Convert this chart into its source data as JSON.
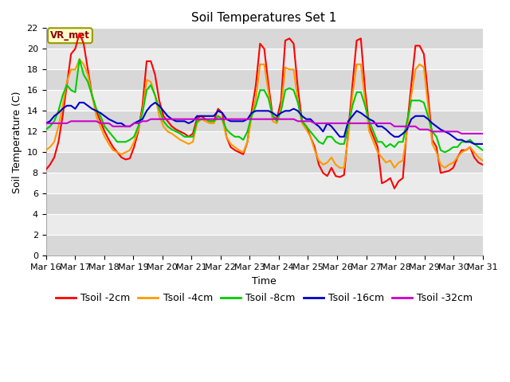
{
  "title": "Soil Temperatures Set 1",
  "xlabel": "Time",
  "ylabel": "Soil Temperature (C)",
  "annotation": "VR_met",
  "ylim": [
    0,
    22
  ],
  "yticks": [
    0,
    2,
    4,
    6,
    8,
    10,
    12,
    14,
    16,
    18,
    20,
    22
  ],
  "xtick_labels": [
    "Mar 16",
    "Mar 17",
    "Mar 18",
    "Mar 19",
    "Mar 20",
    "Mar 21",
    "Mar 22",
    "Mar 23",
    "Mar 24",
    "Mar 25",
    "Mar 26",
    "Mar 27",
    "Mar 28",
    "Mar 29",
    "Mar 30",
    "Mar 31"
  ],
  "colors": {
    "Tsoil -2cm": "#ff0000",
    "Tsoil -4cm": "#ff9900",
    "Tsoil -8cm": "#00cc00",
    "Tsoil -16cm": "#0000cc",
    "Tsoil -32cm": "#cc00cc"
  },
  "stripe_light": "#ebebeb",
  "stripe_dark": "#d8d8d8",
  "title_fontsize": 11,
  "axis_fontsize": 9,
  "tick_fontsize": 8,
  "legend_fontsize": 9,
  "series": {
    "Tsoil -2cm": [
      8.3,
      8.8,
      9.5,
      11.0,
      13.5,
      16.5,
      19.5,
      20.0,
      21.5,
      20.5,
      18.0,
      15.5,
      14.0,
      13.0,
      12.0,
      11.2,
      10.5,
      10.0,
      9.5,
      9.3,
      9.4,
      10.5,
      12.0,
      14.5,
      18.8,
      18.8,
      17.5,
      15.0,
      13.5,
      13.0,
      12.5,
      12.2,
      12.0,
      11.8,
      11.5,
      11.8,
      13.3,
      13.5,
      13.2,
      13.0,
      13.0,
      14.2,
      13.8,
      11.5,
      10.5,
      10.2,
      10.0,
      9.8,
      11.0,
      14.0,
      16.5,
      20.5,
      20.0,
      16.5,
      13.5,
      13.2,
      15.0,
      20.8,
      21.0,
      20.5,
      16.2,
      13.0,
      12.5,
      11.5,
      10.5,
      8.8,
      8.0,
      7.7,
      8.5,
      7.7,
      7.6,
      7.8,
      12.0,
      16.5,
      20.8,
      21.0,
      16.0,
      12.5,
      11.5,
      10.5,
      7.0,
      7.2,
      7.5,
      6.5,
      7.2,
      7.5,
      12.5,
      16.5,
      20.3,
      20.3,
      19.5,
      15.5,
      11.2,
      10.5,
      8.0,
      8.1,
      8.2,
      8.5,
      9.5,
      10.2,
      10.2,
      10.5,
      9.5,
      9.0,
      8.8
    ],
    "Tsoil -4cm": [
      10.2,
      10.5,
      11.0,
      12.5,
      14.5,
      16.8,
      18.0,
      18.0,
      19.0,
      18.5,
      17.5,
      15.5,
      13.5,
      12.5,
      11.5,
      10.8,
      10.2,
      10.0,
      9.8,
      10.0,
      10.2,
      11.0,
      12.2,
      14.0,
      17.0,
      16.8,
      15.5,
      13.5,
      12.5,
      12.0,
      11.8,
      11.5,
      11.2,
      11.0,
      10.8,
      11.0,
      12.8,
      13.2,
      13.0,
      12.8,
      12.8,
      13.5,
      13.2,
      11.5,
      10.8,
      10.5,
      10.2,
      10.0,
      11.0,
      13.5,
      15.2,
      18.5,
      18.5,
      15.8,
      13.0,
      12.8,
      14.2,
      18.2,
      18.0,
      18.0,
      15.0,
      12.8,
      12.2,
      11.5,
      10.2,
      9.2,
      8.8,
      9.0,
      9.5,
      8.8,
      8.5,
      8.5,
      11.5,
      15.5,
      18.5,
      18.5,
      15.0,
      12.0,
      11.0,
      10.0,
      9.5,
      9.0,
      9.2,
      8.5,
      9.0,
      9.2,
      12.0,
      15.5,
      18.0,
      18.5,
      18.2,
      14.5,
      10.8,
      10.0,
      8.8,
      8.5,
      8.8,
      9.0,
      9.5,
      10.0,
      10.2,
      10.5,
      10.0,
      9.5,
      9.2
    ],
    "Tsoil -8cm": [
      12.2,
      12.5,
      13.0,
      14.0,
      15.5,
      16.5,
      16.0,
      15.8,
      19.0,
      17.5,
      16.8,
      15.5,
      14.2,
      13.5,
      12.5,
      12.0,
      11.5,
      11.0,
      11.0,
      11.0,
      11.2,
      11.5,
      12.5,
      13.8,
      16.0,
      16.5,
      15.5,
      14.2,
      13.0,
      12.5,
      12.2,
      12.0,
      11.8,
      11.5,
      11.5,
      11.5,
      13.0,
      13.2,
      13.2,
      13.0,
      13.0,
      13.5,
      13.2,
      12.2,
      11.8,
      11.5,
      11.5,
      11.2,
      12.0,
      13.5,
      14.5,
      16.0,
      16.0,
      15.2,
      13.5,
      13.0,
      14.0,
      16.0,
      16.2,
      16.0,
      14.8,
      13.0,
      12.5,
      12.0,
      11.5,
      11.0,
      10.8,
      11.5,
      11.5,
      11.0,
      10.8,
      10.8,
      12.5,
      14.5,
      15.8,
      15.8,
      14.5,
      13.0,
      12.0,
      11.0,
      11.0,
      10.5,
      10.8,
      10.5,
      11.0,
      11.0,
      13.0,
      15.0,
      15.0,
      15.0,
      14.8,
      13.5,
      12.0,
      11.5,
      10.2,
      10.0,
      10.2,
      10.5,
      10.5,
      11.0,
      11.0,
      11.2,
      10.8,
      10.5,
      10.2
    ],
    "Tsoil -16cm": [
      12.8,
      13.0,
      13.5,
      13.8,
      14.2,
      14.5,
      14.5,
      14.2,
      14.8,
      14.8,
      14.5,
      14.2,
      14.0,
      13.8,
      13.5,
      13.2,
      13.0,
      12.8,
      12.8,
      12.5,
      12.5,
      12.8,
      13.0,
      13.2,
      14.0,
      14.5,
      14.8,
      14.5,
      14.0,
      13.5,
      13.2,
      13.0,
      13.0,
      13.0,
      12.8,
      13.0,
      13.5,
      13.5,
      13.5,
      13.5,
      13.5,
      14.0,
      13.8,
      13.2,
      13.0,
      13.0,
      13.0,
      13.0,
      13.2,
      13.8,
      14.0,
      14.0,
      14.0,
      14.0,
      13.8,
      13.5,
      13.8,
      14.0,
      14.0,
      14.2,
      14.0,
      13.5,
      13.2,
      13.2,
      12.8,
      12.5,
      12.0,
      12.8,
      12.5,
      12.0,
      11.5,
      11.5,
      13.0,
      13.5,
      14.0,
      13.8,
      13.5,
      13.2,
      13.0,
      12.5,
      12.5,
      12.2,
      11.8,
      11.5,
      11.5,
      11.8,
      12.2,
      13.2,
      13.5,
      13.5,
      13.5,
      13.2,
      12.8,
      12.5,
      12.2,
      12.0,
      11.8,
      11.5,
      11.2,
      11.2,
      11.0,
      11.0,
      10.8,
      10.8,
      10.8
    ],
    "Tsoil -32cm": [
      12.8,
      12.8,
      12.8,
      12.8,
      12.8,
      12.8,
      13.0,
      13.0,
      13.0,
      13.0,
      13.0,
      13.0,
      13.0,
      12.8,
      12.8,
      12.8,
      12.5,
      12.5,
      12.5,
      12.5,
      12.5,
      12.8,
      12.8,
      13.0,
      13.0,
      13.2,
      13.2,
      13.2,
      13.2,
      13.2,
      13.2,
      13.2,
      13.2,
      13.2,
      13.2,
      13.2,
      13.2,
      13.2,
      13.2,
      13.2,
      13.2,
      13.2,
      13.2,
      13.2,
      13.2,
      13.2,
      13.2,
      13.2,
      13.2,
      13.2,
      13.2,
      13.2,
      13.2,
      13.2,
      13.2,
      13.2,
      13.2,
      13.2,
      13.2,
      13.2,
      13.0,
      13.0,
      13.0,
      13.0,
      12.8,
      12.8,
      12.8,
      12.8,
      12.8,
      12.8,
      12.8,
      12.8,
      12.8,
      12.8,
      12.8,
      12.8,
      12.8,
      12.8,
      12.8,
      12.8,
      12.8,
      12.8,
      12.8,
      12.5,
      12.5,
      12.5,
      12.5,
      12.5,
      12.5,
      12.2,
      12.2,
      12.2,
      12.0,
      12.0,
      12.0,
      12.0,
      12.0,
      12.0,
      12.0,
      11.8,
      11.8,
      11.8,
      11.8,
      11.8,
      11.8
    ]
  }
}
